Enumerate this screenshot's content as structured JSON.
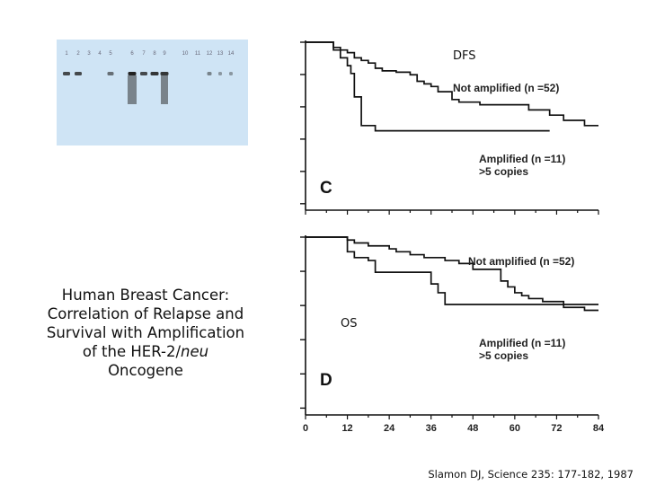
{
  "gel": {
    "lane_labels": [
      "1",
      "2",
      "3",
      "4",
      "5",
      "6",
      "7",
      "8",
      "9",
      "10",
      "11",
      "12",
      "13",
      "14"
    ]
  },
  "caption": {
    "line1": "Human Breast Cancer:",
    "line2": "Correlation of Relapse and",
    "line3": "Survival with Amplification",
    "line4a": "of the HER-2/",
    "line4b": "neu",
    "line5": "Oncogene"
  },
  "citation": "Slamon DJ, Science 235: 177-182, 1987",
  "chart_data": [
    {
      "type": "line",
      "title": "DFS",
      "panel_letter": "C",
      "series": [
        {
          "name": "Not amplified (n =52)",
          "label_line1": "Not amplified (n =52)",
          "x": [
            0,
            3,
            5,
            6,
            8,
            10,
            12,
            14,
            16,
            18,
            20,
            22,
            26,
            30,
            32,
            34,
            36,
            38,
            42,
            44,
            50,
            60,
            64,
            70,
            74,
            80,
            84
          ],
          "y": [
            1,
            1,
            1,
            1,
            0.96,
            0.94,
            0.92,
            0.88,
            0.86,
            0.84,
            0.8,
            0.78,
            0.77,
            0.75,
            0.7,
            0.68,
            0.66,
            0.62,
            0.56,
            0.54,
            0.52,
            0.52,
            0.48,
            0.44,
            0.4,
            0.36,
            0.36
          ]
        },
        {
          "name": "Amplified (n =11) >5 copies",
          "label_line1": "Amplified (n =11)",
          "label_line2": ">5 copies",
          "x": [
            0,
            6,
            8,
            10,
            12,
            13,
            14,
            16,
            18,
            20,
            70
          ],
          "y": [
            1,
            1,
            0.94,
            0.88,
            0.82,
            0.76,
            0.58,
            0.36,
            0.36,
            0.32,
            0.32
          ]
        }
      ],
      "xlim": [
        0,
        84
      ]
    },
    {
      "type": "line",
      "title": "OS",
      "panel_letter": "D",
      "series": [
        {
          "name": "Not amplified (n =52)",
          "label_line1": "Not amplified (n =52)",
          "x": [
            0,
            10,
            12,
            14,
            18,
            24,
            26,
            30,
            34,
            40,
            44,
            48,
            56,
            58,
            60,
            62,
            64,
            68,
            74,
            80,
            84
          ],
          "y": [
            1,
            1,
            0.98,
            0.96,
            0.94,
            0.92,
            0.9,
            0.88,
            0.86,
            0.84,
            0.82,
            0.78,
            0.7,
            0.66,
            0.62,
            0.6,
            0.58,
            0.56,
            0.52,
            0.5,
            0.5
          ]
        },
        {
          "name": "Amplified (n =11) >5 copies",
          "label_line1": "Amplified (n =11)",
          "label_line2": ">5 copies",
          "x": [
            0,
            10,
            12,
            14,
            18,
            20,
            34,
            36,
            38,
            40,
            84
          ],
          "y": [
            1,
            1,
            0.9,
            0.86,
            0.84,
            0.76,
            0.76,
            0.68,
            0.62,
            0.54,
            0.54
          ]
        }
      ],
      "x_ticks": [
        "0",
        "12",
        "24",
        "36",
        "48",
        "60",
        "72",
        "84"
      ],
      "xlim": [
        0,
        84
      ]
    }
  ]
}
